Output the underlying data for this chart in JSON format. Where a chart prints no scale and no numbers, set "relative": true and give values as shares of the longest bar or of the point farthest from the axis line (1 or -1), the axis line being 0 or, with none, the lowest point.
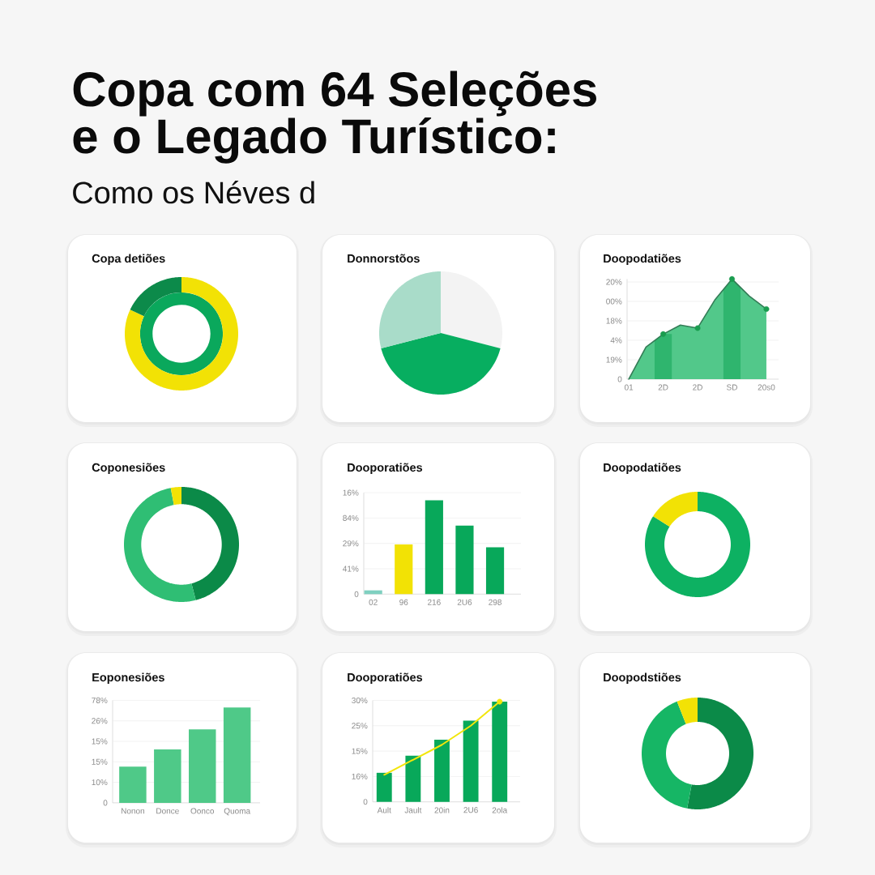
{
  "chart_data": [
    {
      "type": "other",
      "title": "Copa com 64 Seleções e o Legado Turístico:",
      "subtitle": "Como os Néves d"
    },
    {
      "type": "donut",
      "title": "Copa detiões",
      "categories": [
        null,
        null
      ],
      "values": [
        82,
        18
      ],
      "colors": [
        "#f2e205",
        "#0c8a4a"
      ]
    },
    {
      "type": "pie",
      "title": "Donnorstõos",
      "categories": [
        null,
        null,
        null
      ],
      "values": [
        29,
        42,
        29
      ],
      "colors": [
        "#f3f3f3",
        "#07ae60",
        "#a9dcc9"
      ]
    },
    {
      "type": "area",
      "title": "Doopodatiões",
      "relative": true,
      "categories": [
        "01",
        null,
        "2D",
        null,
        "2D",
        null,
        "SD",
        null,
        "20s0"
      ],
      "annotations": [
        "20%",
        "00%",
        "18%",
        "4%",
        "19%",
        "0"
      ],
      "grid": "y",
      "series": [
        {
          "type": "area",
          "color": "#52c88a",
          "values": [
            0,
            0.32,
            0.45,
            0.54,
            0.51,
            0.79,
            1,
            0.83,
            0.7
          ]
        },
        {
          "type": "bar",
          "color": "#2fb56e",
          "values": [
            null,
            null,
            0.45,
            null,
            null,
            null,
            1,
            null,
            null
          ]
        },
        {
          "type": "scatter",
          "color": "#1a9c4f",
          "marker": "circle",
          "values": [
            null,
            null,
            0.45,
            null,
            0.51,
            null,
            1,
            null,
            0.7
          ]
        }
      ]
    },
    {
      "type": "donut",
      "title": "Coponesiões",
      "categories": [
        null,
        null,
        null
      ],
      "values": [
        46,
        51,
        3
      ],
      "colors": [
        "#0b8a48",
        "#2fbe74",
        "#f2e205"
      ]
    },
    {
      "type": "bar",
      "title": "Dooporatiões",
      "relative": true,
      "categories": [
        "02",
        "96",
        "216",
        "2U6",
        "298"
      ],
      "values": [
        0.04,
        0.53,
        1,
        0.73,
        0.5
      ],
      "colors": [
        "#7fd0c0",
        "#f2e205",
        "#08a85a",
        "#08a85a",
        "#08a85a"
      ],
      "annotations": [
        "16%",
        "84%",
        "29%",
        "41%",
        "0"
      ],
      "grid": "y"
    },
    {
      "type": "donut",
      "title": "Doopodatiões",
      "categories": [
        null,
        null
      ],
      "values": [
        84,
        16
      ],
      "colors": [
        "#0db162",
        "#f2e205"
      ]
    },
    {
      "type": "bar",
      "title": "Eoponesiões",
      "relative": true,
      "categories": [
        "Nonon",
        "Donce",
        "Oonco",
        "Quoma"
      ],
      "values": [
        0.38,
        0.56,
        0.77,
        1
      ],
      "color": "#4fc988",
      "annotations": [
        "78%",
        "26%",
        "15%",
        "15%",
        "10%",
        "0"
      ],
      "grid": "y"
    },
    {
      "type": "bar",
      "title": "Dooporatiões",
      "relative": true,
      "categories": [
        "Ault",
        "Jault",
        "20in",
        "2U6",
        "2ola"
      ],
      "annotations": [
        "30%",
        "25%",
        "15%",
        "16%",
        "0"
      ],
      "grid": "y",
      "series": [
        {
          "type": "bar",
          "color": "#08a85a",
          "values": [
            0.29,
            0.46,
            0.62,
            0.81,
            1
          ]
        },
        {
          "type": "line",
          "color": "#f2e60a",
          "values": [
            0.27,
            0.42,
            0.57,
            0.76,
            1
          ]
        },
        {
          "type": "scatter",
          "color": "#f2e60a",
          "marker": "circle",
          "values": [
            null,
            null,
            null,
            null,
            1
          ]
        }
      ]
    },
    {
      "type": "donut",
      "title": "Doopodstiões",
      "categories": [
        null,
        null,
        null
      ],
      "values": [
        53,
        41,
        6
      ],
      "colors": [
        "#0b8a48",
        "#16b665",
        "#f2e205"
      ]
    }
  ]
}
